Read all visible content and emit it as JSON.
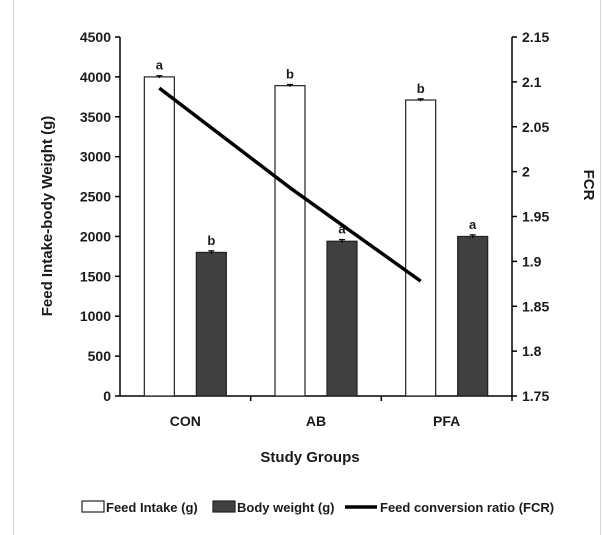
{
  "chart_data": {
    "type": "bar",
    "categories": [
      "CON",
      "AB",
      "PFA"
    ],
    "series": [
      {
        "name": "Feed Intake (g)",
        "axis": "left",
        "type": "bar",
        "color": "#ffffff",
        "values": [
          4000,
          3890,
          3710
        ],
        "errors": [
          15,
          15,
          15
        ],
        "significance": [
          "a",
          "b",
          "b"
        ]
      },
      {
        "name": "Body weight (g)",
        "axis": "left",
        "type": "bar",
        "color": "#404040",
        "values": [
          1800,
          1940,
          2000
        ],
        "errors": [
          20,
          20,
          20
        ],
        "significance": [
          "b",
          "a",
          "a"
        ]
      },
      {
        "name": "Feed conversion ratio (FCR)",
        "axis": "right",
        "type": "line",
        "color": "#000000",
        "values": [
          2.093,
          1.982,
          1.878
        ]
      }
    ],
    "xlabel": "Study Groups",
    "ylabel": "Feed Intake-body Weight (g)",
    "y2label": "FCR",
    "ylim": [
      0,
      4500
    ],
    "y2lim": [
      1.75,
      2.15
    ],
    "yticks": [
      "0",
      "500",
      "1000",
      "1500",
      "2000",
      "2500",
      "3000",
      "3500",
      "4000",
      "4500"
    ],
    "y2ticks": [
      "1.75",
      "1.8",
      "1.85",
      "1.9",
      "1.95",
      "2",
      "2.05",
      "2.1",
      "2.15"
    ],
    "grid": false,
    "legend_position": "bottom"
  }
}
